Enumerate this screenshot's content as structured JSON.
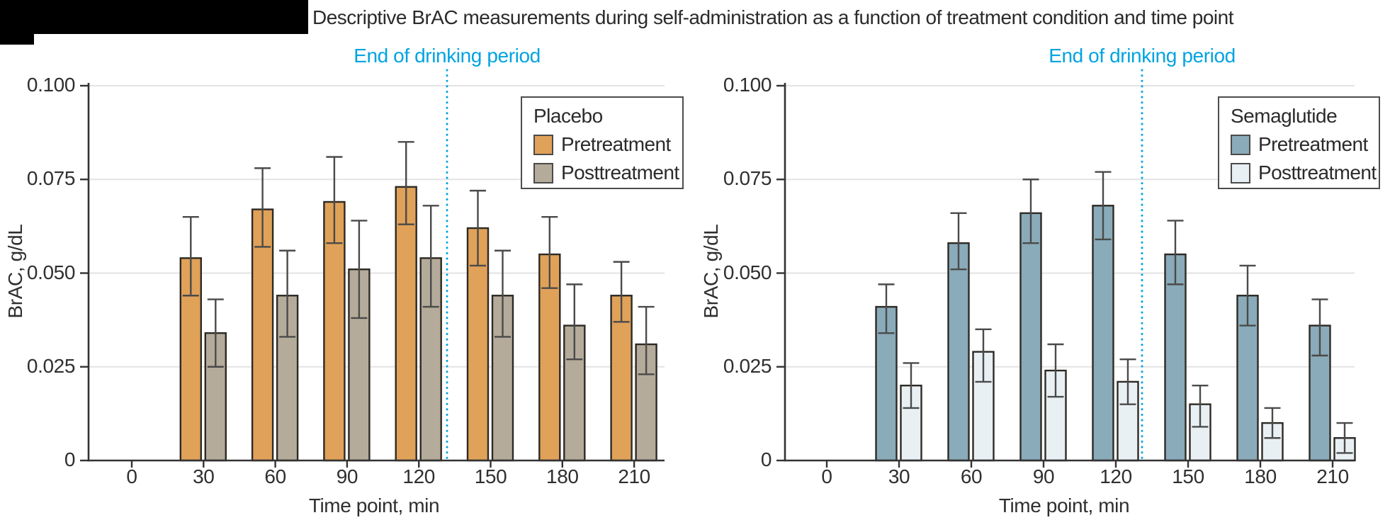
{
  "figure": {
    "title": "Descriptive BrAC measurements during self-administration as a function of treatment condition and time point"
  },
  "annotation": {
    "text": "End of drinking period",
    "color": "#00a3e1",
    "x_min": 130
  },
  "axes": {
    "x_label": "Time point, min",
    "y_label": "BrAC, g/dL",
    "y_ticks": [
      "0.100",
      "0.075",
      "0.050",
      "0.025",
      "0"
    ],
    "x_ticks": [
      "0",
      "30",
      "60",
      "90",
      "120",
      "150",
      "180",
      "210"
    ]
  },
  "chart_data": [
    {
      "type": "bar",
      "legend_title": "Placebo",
      "xlabel": "Time point, min",
      "ylabel": "BrAC, g/dL",
      "ylim": [
        0,
        0.1
      ],
      "grid": true,
      "legend_position": "upper-right",
      "categories": [
        0,
        30,
        60,
        90,
        120,
        150,
        180,
        210
      ],
      "end_of_drinking_min": 130,
      "series": [
        {
          "name": "Pretreatment",
          "color": "#e0a159",
          "values": [
            0,
            0.054,
            0.067,
            0.069,
            0.073,
            0.062,
            0.055,
            0.044
          ],
          "err_low": [
            0,
            0.044,
            0.057,
            0.058,
            0.063,
            0.052,
            0.046,
            0.037
          ],
          "err_high": [
            0,
            0.065,
            0.078,
            0.081,
            0.085,
            0.072,
            0.065,
            0.053
          ]
        },
        {
          "name": "Posttreatment",
          "color": "#b5ab9a",
          "values": [
            0,
            0.034,
            0.044,
            0.051,
            0.054,
            0.044,
            0.036,
            0.031
          ],
          "err_low": [
            0,
            0.025,
            0.033,
            0.038,
            0.041,
            0.033,
            0.027,
            0.023
          ],
          "err_high": [
            0,
            0.043,
            0.056,
            0.064,
            0.068,
            0.056,
            0.047,
            0.041
          ]
        }
      ]
    },
    {
      "type": "bar",
      "legend_title": "Semaglutide",
      "xlabel": "Time point, min",
      "ylabel": "BrAC, g/dL",
      "ylim": [
        0,
        0.1
      ],
      "grid": true,
      "legend_position": "upper-right",
      "categories": [
        0,
        30,
        60,
        90,
        120,
        150,
        180,
        210
      ],
      "end_of_drinking_min": 130,
      "series": [
        {
          "name": "Pretreatment",
          "color": "#8aabb9",
          "values": [
            0,
            0.041,
            0.058,
            0.066,
            0.068,
            0.055,
            0.044,
            0.036
          ],
          "err_low": [
            0,
            0.034,
            0.051,
            0.058,
            0.059,
            0.047,
            0.036,
            0.028
          ],
          "err_high": [
            0,
            0.047,
            0.066,
            0.075,
            0.077,
            0.064,
            0.052,
            0.043
          ]
        },
        {
          "name": "Posttreatment",
          "color": "#e9f0f4",
          "values": [
            0,
            0.02,
            0.029,
            0.024,
            0.021,
            0.015,
            0.01,
            0.006
          ],
          "err_low": [
            0,
            0.014,
            0.021,
            0.017,
            0.015,
            0.009,
            0.006,
            0.002
          ],
          "err_high": [
            0,
            0.026,
            0.035,
            0.031,
            0.027,
            0.02,
            0.014,
            0.01
          ]
        }
      ]
    }
  ]
}
